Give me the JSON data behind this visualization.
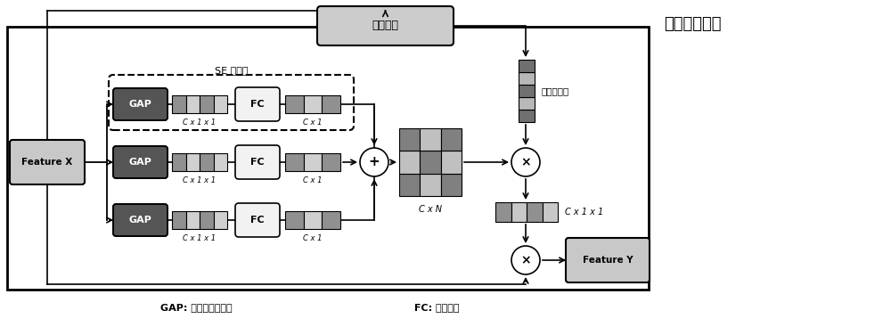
{
  "bg_color": "#ffffff",
  "gap_color": "#555555",
  "fc_color": "#f2f2f2",
  "domain_attn_color": "#cccccc",
  "feature_box_color": "#c8c8c8",
  "seg_dark": "#909090",
  "seg_light": "#d0d0d0",
  "grid_dark": "#808080",
  "grid_light": "#c0c0c0",
  "tall_dark": "#707070",
  "tall_light": "#b8b8b8",
  "bar3_dark": "#909090",
  "bar3_light": "#c8c8c8",
  "label_se": "SE 适配器",
  "label_gap_full": "GAP: 全局平均池化层",
  "label_fc_full": "FC: 全连接层",
  "label_domain_attn": "域注意力",
  "label_feature_x": "Feature X",
  "label_feature_y": "Feature Y",
  "label_cx1x1": "C x 1 x 1",
  "label_cx1": "C x 1",
  "label_cxn": "C x N",
  "label_cx1x1_right": "C x 1 x 1",
  "title_right": "域适配器模块",
  "label_domain_weight": "域权重矩阵"
}
